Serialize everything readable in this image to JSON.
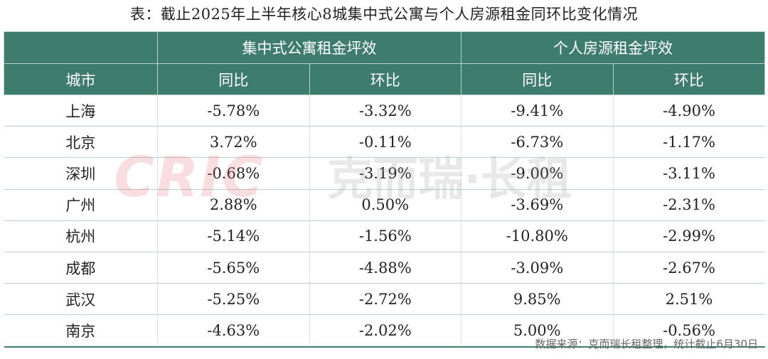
{
  "title": "表：截止2025年上半年核心8城集中式公寓与个人房源租金同环比变化情况",
  "header": {
    "group1": "集中式公寓租金坪效",
    "group2": "个人房源租金坪效",
    "city": "城市",
    "yoy1": "同比",
    "mom1": "环比",
    "yoy2": "同比",
    "mom2": "环比"
  },
  "rows": [
    {
      "city": "上海",
      "v1": "-5.78%",
      "v2": "-3.32%",
      "v3": "-9.41%",
      "v4": "-4.90%"
    },
    {
      "city": "北京",
      "v1": "3.72%",
      "v2": "-0.11%",
      "v3": "-6.73%",
      "v4": "-1.17%"
    },
    {
      "city": "深圳",
      "v1": "-0.68%",
      "v2": "-3.19%",
      "v3": "-9.00%",
      "v4": "-3.11%"
    },
    {
      "city": "广州",
      "v1": "2.88%",
      "v2": "0.50%",
      "v3": "-3.69%",
      "v4": "-2.31%"
    },
    {
      "city": "杭州",
      "v1": "-5.14%",
      "v2": "-1.56%",
      "v3": "-10.80%",
      "v4": "-2.99%"
    },
    {
      "city": "成都",
      "v1": "-5.65%",
      "v2": "-4.88%",
      "v3": "-3.09%",
      "v4": "-2.67%"
    },
    {
      "city": "武汉",
      "v1": "-5.25%",
      "v2": "-2.72%",
      "v3": "9.85%",
      "v4": "2.51%"
    },
    {
      "city": "南京",
      "v1": "-4.63%",
      "v2": "-2.02%",
      "v3": "5.00%",
      "v4": "-0.56%"
    }
  ],
  "watermark": {
    "logo": "CRIC",
    "text": "克而瑞·长租"
  },
  "footer": "数据来源：克而瑞长租整理，统计截止6月30日",
  "colors": {
    "header_bg": "#3e7c6e",
    "header_text": "#ffffff",
    "watermark": "#e06c7a"
  }
}
